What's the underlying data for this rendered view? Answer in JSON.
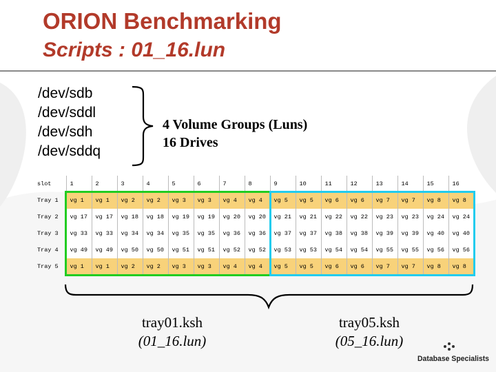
{
  "title": {
    "line1": "ORION Benchmarking",
    "line2": "Scripts : 01_16.lun"
  },
  "devices": [
    "/dev/sdb",
    "/dev/sddl",
    "/dev/sdh",
    "/dev/sddq"
  ],
  "volume_desc": {
    "line1": "4 Volume Groups (Luns)",
    "line2": "16 Drives"
  },
  "table": {
    "header": [
      "slot",
      "1",
      "2",
      "3",
      "4",
      "5",
      "6",
      "7",
      "8",
      "9",
      "10",
      "11",
      "12",
      "13",
      "14",
      "15",
      "16"
    ],
    "rows": [
      {
        "label": "Tray 1",
        "cells": [
          "vg 1",
          "vg 1",
          "vg 2",
          "vg 2",
          "vg 3",
          "vg 3",
          "vg 4",
          "vg 4",
          "vg 5",
          "vg 5",
          "vg 6",
          "vg 6",
          "vg 7",
          "vg 7",
          "vg 8",
          "vg 8"
        ]
      },
      {
        "label": "Tray 2",
        "cells": [
          "vg 17",
          "vg 17",
          "vg 18",
          "vg 18",
          "vg 19",
          "vg 19",
          "vg 20",
          "vg 20",
          "vg 21",
          "vg 21",
          "vg 22",
          "vg 22",
          "vg 23",
          "vg 23",
          "vg 24",
          "vg 24"
        ]
      },
      {
        "label": "Tray 3",
        "cells": [
          "vg 33",
          "vg 33",
          "vg 34",
          "vg 34",
          "vg 35",
          "vg 35",
          "vg 36",
          "vg 36",
          "vg 37",
          "vg 37",
          "vg 38",
          "vg 38",
          "vg 39",
          "vg 39",
          "vg 40",
          "vg 40"
        ]
      },
      {
        "label": "Tray 4",
        "cells": [
          "vg 49",
          "vg 49",
          "vg 50",
          "vg 50",
          "vg 51",
          "vg 51",
          "vg 52",
          "vg 52",
          "vg 53",
          "vg 53",
          "vg 54",
          "vg 54",
          "vg 55",
          "vg 55",
          "vg 56",
          "vg 56"
        ]
      },
      {
        "label": "Tray 5",
        "cells": [
          "vg 1",
          "vg 1",
          "vg 2",
          "vg 2",
          "vg 3",
          "vg 3",
          "vg 4",
          "vg 4",
          "vg 5",
          "vg 5",
          "vg 6",
          "vg 6",
          "vg 7",
          "vg 7",
          "vg 8",
          "vg 8"
        ]
      }
    ],
    "row_fill": [
      "yellow",
      "white",
      "white",
      "white",
      "yellow"
    ]
  },
  "groups": [
    {
      "script": "tray01.ksh",
      "lun": "(01_16.lun)",
      "color": "#22cc22"
    },
    {
      "script": "tray05.ksh",
      "lun": "(05_16.lun)",
      "color": "#22ccee"
    }
  ],
  "colors": {
    "title": "#b23a2a",
    "cell_highlight": "#f8d27a",
    "group_green": "#22cc22",
    "group_cyan": "#22ccee"
  },
  "logo": {
    "text": "Database Specialists"
  }
}
